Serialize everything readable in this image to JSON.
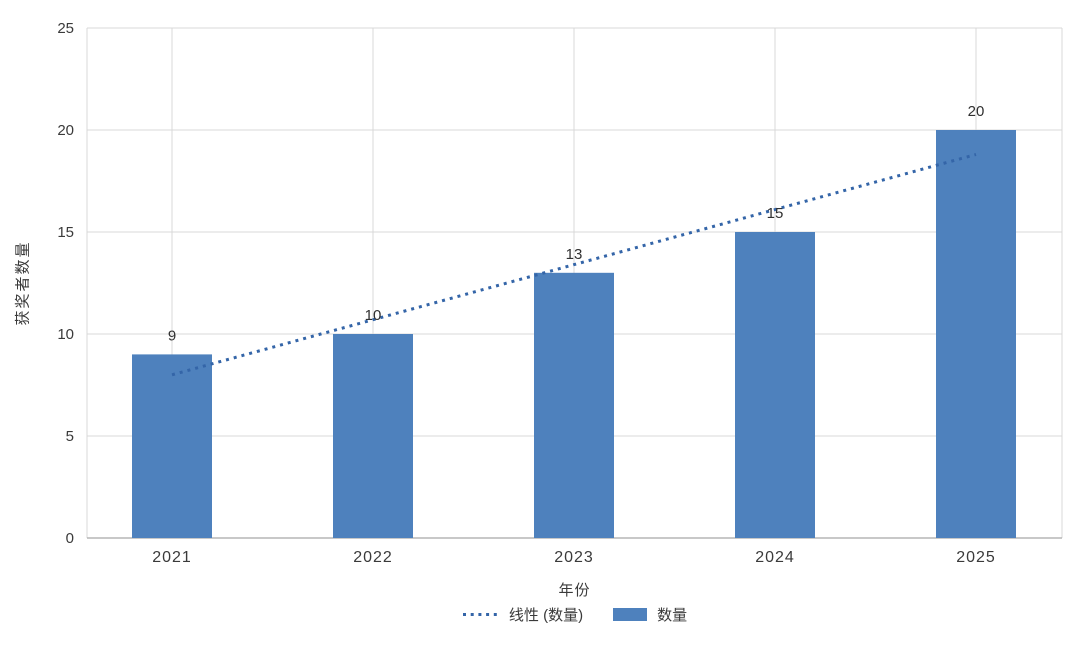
{
  "chart_data": {
    "type": "bar",
    "categories": [
      "2021",
      "2022",
      "2023",
      "2024",
      "2025"
    ],
    "series": [
      {
        "name": "数量",
        "values": [
          9,
          10,
          13,
          15,
          20
        ]
      }
    ],
    "data_labels": [
      9,
      10,
      13,
      15,
      20
    ],
    "trendline": {
      "name": "线性 (数量)",
      "type": "linear",
      "start_value": 8.0,
      "end_value": 18.8
    },
    "xlabel": "年份",
    "ylabel": "获奖者数量",
    "ylim": [
      0,
      25
    ],
    "yticks": [
      0,
      5,
      10,
      15,
      20,
      25
    ],
    "grid": true,
    "legend_position": "bottom",
    "colors": {
      "bar": "#4E81BD",
      "trendline": "#3465A8",
      "gridline": "#D9D9D9",
      "axis_line": "#B5B5B5",
      "text": "#3A3A3A"
    }
  }
}
